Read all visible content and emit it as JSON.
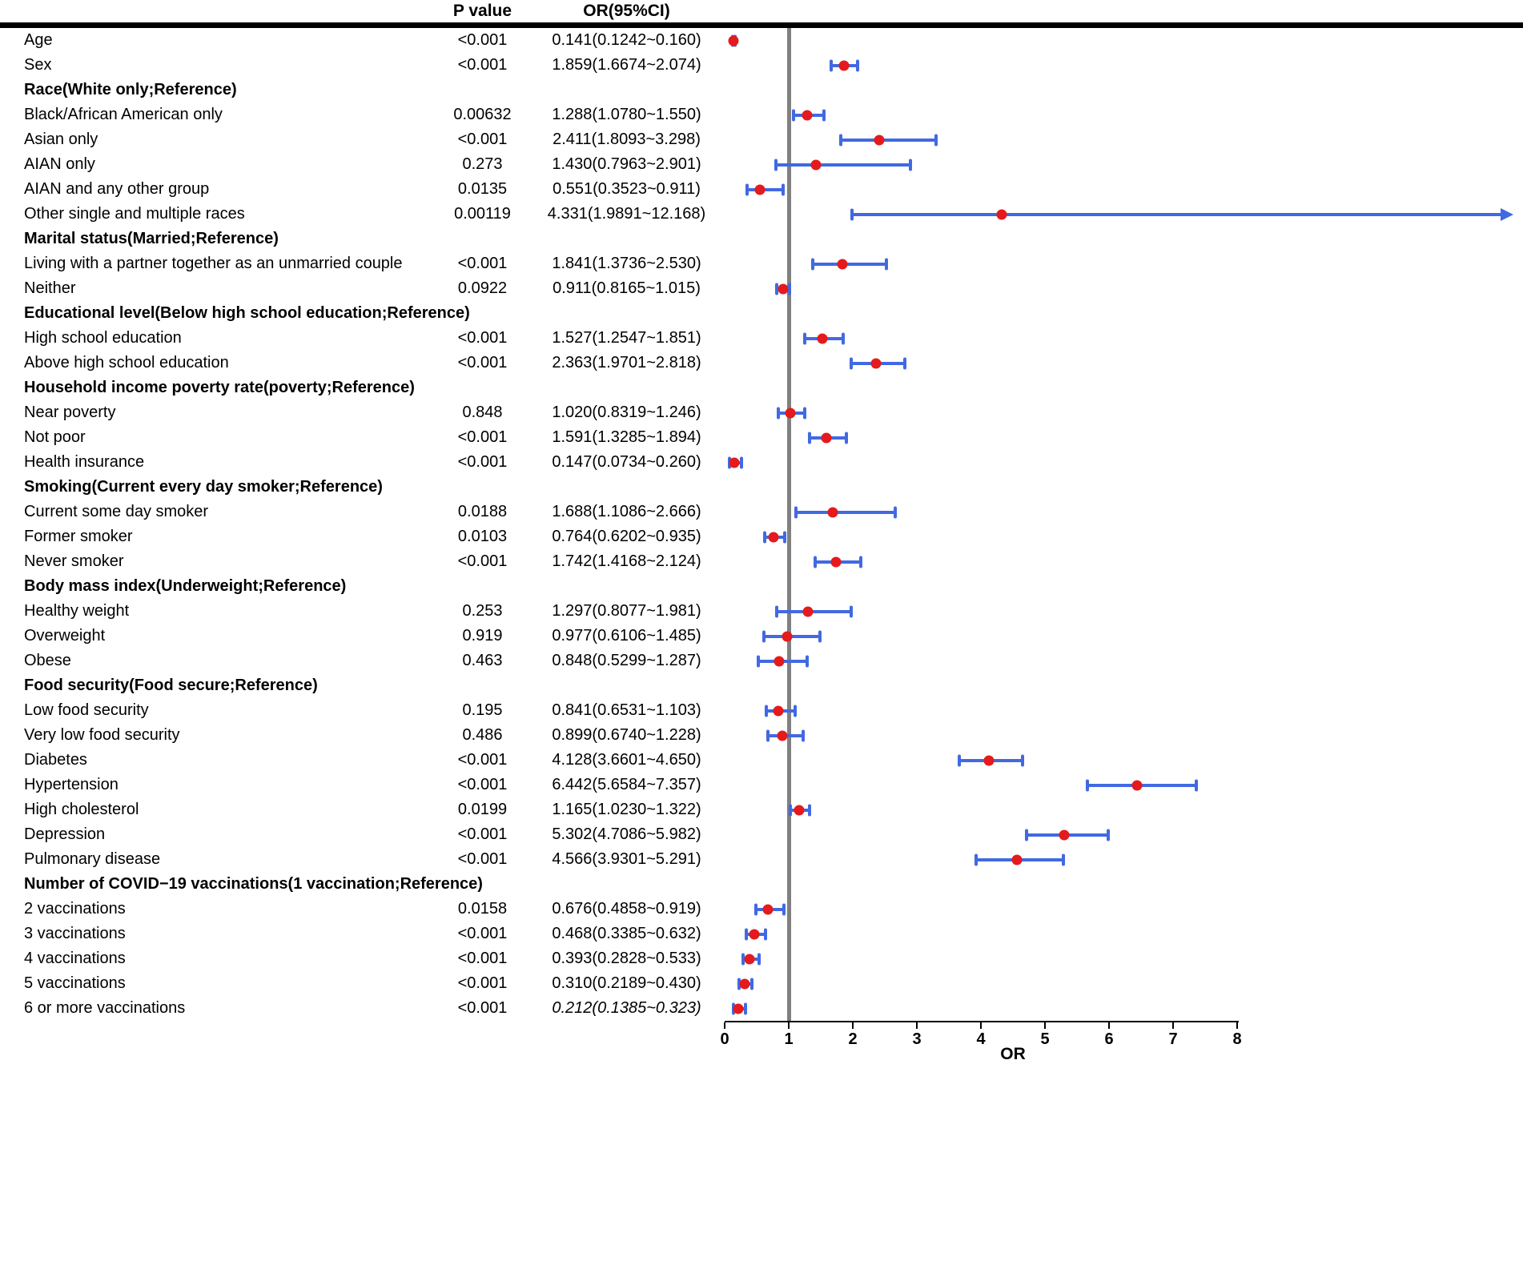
{
  "figure": {
    "columns": {
      "p": "P value",
      "or_ci": "OR(95%CI)"
    }
  },
  "chart_data": {
    "type": "scatter",
    "subtype": "forest-plot",
    "title": "",
    "xlabel": "OR",
    "ylabel": "",
    "xlim": [
      0,
      8
    ],
    "x_ticks": [
      0,
      1,
      2,
      3,
      4,
      5,
      6,
      7,
      8
    ],
    "reference_line_x": 1,
    "grid": false,
    "legend": "none",
    "colors": {
      "ci_bar": "#4169e1",
      "point": "#e41a1c",
      "reference_line": "#808080"
    },
    "rows": [
      {
        "type": "data",
        "label": "Age",
        "p": "<0.001",
        "or_ci": "0.141(0.1242~0.160)",
        "or": 0.141,
        "lo": 0.1242,
        "hi": 0.16
      },
      {
        "type": "data",
        "label": "Sex",
        "p": "<0.001",
        "or_ci": "1.859(1.6674~2.074)",
        "or": 1.859,
        "lo": 1.6674,
        "hi": 2.074
      },
      {
        "type": "header",
        "label": "Race(White only;Reference)"
      },
      {
        "type": "data",
        "label": "Black/African American only",
        "p": "0.00632",
        "or_ci": "1.288(1.0780~1.550)",
        "or": 1.288,
        "lo": 1.078,
        "hi": 1.55
      },
      {
        "type": "data",
        "label": "Asian only",
        "p": "<0.001",
        "or_ci": "2.411(1.8093~3.298)",
        "or": 2.411,
        "lo": 1.8093,
        "hi": 3.298
      },
      {
        "type": "data",
        "label": "AIAN only",
        "p": "0.273",
        "or_ci": "1.430(0.7963~2.901)",
        "or": 1.43,
        "lo": 0.7963,
        "hi": 2.901
      },
      {
        "type": "data",
        "label": "AIAN and any other group",
        "p": "0.0135",
        "or_ci": "0.551(0.3523~0.911)",
        "or": 0.551,
        "lo": 0.3523,
        "hi": 0.911
      },
      {
        "type": "data",
        "label": "Other single and multiple races",
        "p": "0.00119",
        "or_ci": "4.331(1.9891~12.168)",
        "or": 4.331,
        "lo": 1.9891,
        "hi": 12.168,
        "arrow": true
      },
      {
        "type": "header",
        "label": "Marital status(Married;Reference)"
      },
      {
        "type": "data",
        "label": "Living with a partner together as an unmarried couple",
        "p": "<0.001",
        "or_ci": "1.841(1.3736~2.530)",
        "or": 1.841,
        "lo": 1.3736,
        "hi": 2.53
      },
      {
        "type": "data",
        "label": "Neither",
        "p": "0.0922",
        "or_ci": "0.911(0.8165~1.015)",
        "or": 0.911,
        "lo": 0.8165,
        "hi": 1.015
      },
      {
        "type": "header",
        "label": "Educational level(Below high school education;Reference)"
      },
      {
        "type": "data",
        "label": "High school education",
        "p": "<0.001",
        "or_ci": "1.527(1.2547~1.851)",
        "or": 1.527,
        "lo": 1.2547,
        "hi": 1.851
      },
      {
        "type": "data",
        "label": "Above high school education",
        "p": "<0.001",
        "or_ci": "2.363(1.9701~2.818)",
        "or": 2.363,
        "lo": 1.9701,
        "hi": 2.818
      },
      {
        "type": "header",
        "label": "Household income poverty rate(poverty;Reference)"
      },
      {
        "type": "data",
        "label": "Near poverty",
        "p": "0.848",
        "or_ci": "1.020(0.8319~1.246)",
        "or": 1.02,
        "lo": 0.8319,
        "hi": 1.246
      },
      {
        "type": "data",
        "label": "Not poor",
        "p": "<0.001",
        "or_ci": "1.591(1.3285~1.894)",
        "or": 1.591,
        "lo": 1.3285,
        "hi": 1.894
      },
      {
        "type": "data",
        "label": "Health insurance",
        "p": "<0.001",
        "or_ci": "0.147(0.0734~0.260)",
        "or": 0.147,
        "lo": 0.0734,
        "hi": 0.26
      },
      {
        "type": "header",
        "label": "Smoking(Current every day smoker;Reference)"
      },
      {
        "type": "data",
        "label": "Current some day smoker",
        "p": "0.0188",
        "or_ci": "1.688(1.1086~2.666)",
        "or": 1.688,
        "lo": 1.1086,
        "hi": 2.666
      },
      {
        "type": "data",
        "label": "Former smoker",
        "p": "0.0103",
        "or_ci": "0.764(0.6202~0.935)",
        "or": 0.764,
        "lo": 0.6202,
        "hi": 0.935
      },
      {
        "type": "data",
        "label": "Never smoker",
        "p": "<0.001",
        "or_ci": "1.742(1.4168~2.124)",
        "or": 1.742,
        "lo": 1.4168,
        "hi": 2.124
      },
      {
        "type": "header",
        "label": "Body mass index(Underweight;Reference)"
      },
      {
        "type": "data",
        "label": "Healthy weight",
        "p": "0.253",
        "or_ci": "1.297(0.8077~1.981)",
        "or": 1.297,
        "lo": 0.8077,
        "hi": 1.981
      },
      {
        "type": "data",
        "label": "Overweight",
        "p": "0.919",
        "or_ci": "0.977(0.6106~1.485)",
        "or": 0.977,
        "lo": 0.6106,
        "hi": 1.485
      },
      {
        "type": "data",
        "label": "Obese",
        "p": "0.463",
        "or_ci": "0.848(0.5299~1.287)",
        "or": 0.848,
        "lo": 0.5299,
        "hi": 1.287
      },
      {
        "type": "header",
        "label": "Food security(Food secure;Reference)"
      },
      {
        "type": "data",
        "label": "Low food security",
        "p": "0.195",
        "or_ci": "0.841(0.6531~1.103)",
        "or": 0.841,
        "lo": 0.6531,
        "hi": 1.103
      },
      {
        "type": "data",
        "label": "Very low food security",
        "p": "0.486",
        "or_ci": "0.899(0.6740~1.228)",
        "or": 0.899,
        "lo": 0.674,
        "hi": 1.228
      },
      {
        "type": "data",
        "label": "Diabetes",
        "p": "<0.001",
        "or_ci": "4.128(3.6601~4.650)",
        "or": 4.128,
        "lo": 3.6601,
        "hi": 4.65
      },
      {
        "type": "data",
        "label": "Hypertension",
        "p": "<0.001",
        "or_ci": "6.442(5.6584~7.357)",
        "or": 6.442,
        "lo": 5.6584,
        "hi": 7.357
      },
      {
        "type": "data",
        "label": "High cholesterol",
        "p": "0.0199",
        "or_ci": "1.165(1.0230~1.322)",
        "or": 1.165,
        "lo": 1.023,
        "hi": 1.322
      },
      {
        "type": "data",
        "label": "Depression",
        "p": "<0.001",
        "or_ci": "5.302(4.7086~5.982)",
        "or": 5.302,
        "lo": 4.7086,
        "hi": 5.982
      },
      {
        "type": "data",
        "label": "Pulmonary disease",
        "p": "<0.001",
        "or_ci": "4.566(3.9301~5.291)",
        "or": 4.566,
        "lo": 3.9301,
        "hi": 5.291
      },
      {
        "type": "header",
        "label": "Number of COVID−19 vaccinations(1 vaccination;Reference)"
      },
      {
        "type": "data",
        "label": "2 vaccinations",
        "p": "0.0158",
        "or_ci": "0.676(0.4858~0.919)",
        "or": 0.676,
        "lo": 0.4858,
        "hi": 0.919
      },
      {
        "type": "data",
        "label": "3 vaccinations",
        "p": "<0.001",
        "or_ci": "0.468(0.3385~0.632)",
        "or": 0.468,
        "lo": 0.3385,
        "hi": 0.632
      },
      {
        "type": "data",
        "label": "4 vaccinations",
        "p": "<0.001",
        "or_ci": "0.393(0.2828~0.533)",
        "or": 0.393,
        "lo": 0.2828,
        "hi": 0.533
      },
      {
        "type": "data",
        "label": "5 vaccinations",
        "p": "<0.001",
        "or_ci": "0.310(0.2189~0.430)",
        "or": 0.31,
        "lo": 0.2189,
        "hi": 0.43
      },
      {
        "type": "data",
        "label": "6 or more vaccinations",
        "p": "<0.001",
        "or_ci": "0.212(0.1385~0.323)",
        "or": 0.212,
        "lo": 0.1385,
        "hi": 0.323,
        "italic": true
      }
    ]
  }
}
